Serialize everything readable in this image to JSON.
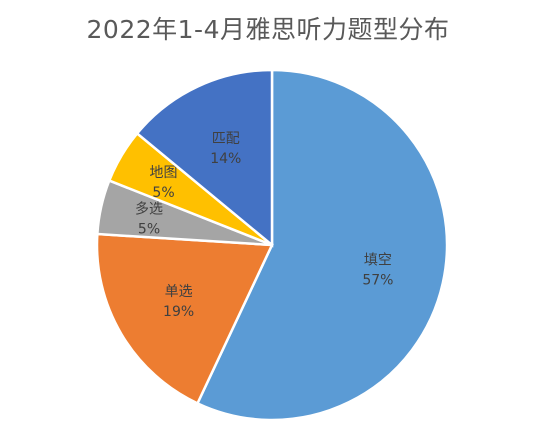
{
  "chart_data": {
    "type": "pie",
    "title": "2022年1-4月雅思听力题型分布",
    "categories": [
      "填空",
      "单选",
      "多选",
      "地图",
      "匹配"
    ],
    "values": [
      57,
      19,
      5,
      5,
      14
    ],
    "value_labels": [
      "57%",
      "19%",
      "5%",
      "5%",
      "14%"
    ],
    "colors": [
      "#5B9BD5",
      "#ED7D31",
      "#A5A5A5",
      "#FFC000",
      "#4472C4"
    ],
    "start": "12 o'clock",
    "direction": "clockwise",
    "legend": "none"
  }
}
